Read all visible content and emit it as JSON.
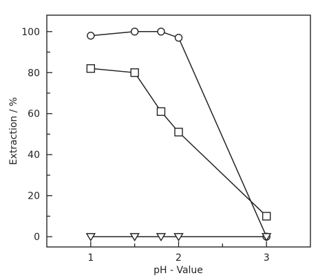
{
  "chart_data": {
    "type": "line",
    "title": "",
    "xlabel": "pH - Value",
    "ylabel": "Extraction / %",
    "xlim": [
      0.5,
      3.5
    ],
    "ylim": [
      -5,
      108
    ],
    "xticks": [
      1,
      2,
      3
    ],
    "xtick_labels": [
      "1",
      "2",
      "3"
    ],
    "xticks_minor": [
      1.5,
      2.5
    ],
    "yticks": [
      0,
      20,
      40,
      60,
      80,
      100
    ],
    "ytick_labels": [
      "0",
      "20",
      "40",
      "60",
      "80",
      "100"
    ],
    "yticks_minor": [
      10,
      30,
      50,
      70,
      90
    ],
    "grid": false,
    "series": [
      {
        "marker": "circle",
        "x": [
          1,
          1.5,
          1.8,
          2,
          3
        ],
        "y": [
          98,
          100,
          100,
          97,
          0
        ]
      },
      {
        "marker": "square",
        "x": [
          1,
          1.5,
          1.8,
          2,
          3
        ],
        "y": [
          82,
          80,
          61,
          51,
          10
        ]
      },
      {
        "marker": "triangle",
        "x": [
          1,
          1.5,
          1.8,
          2,
          3
        ],
        "y": [
          0,
          0,
          0,
          0,
          0
        ]
      }
    ]
  }
}
